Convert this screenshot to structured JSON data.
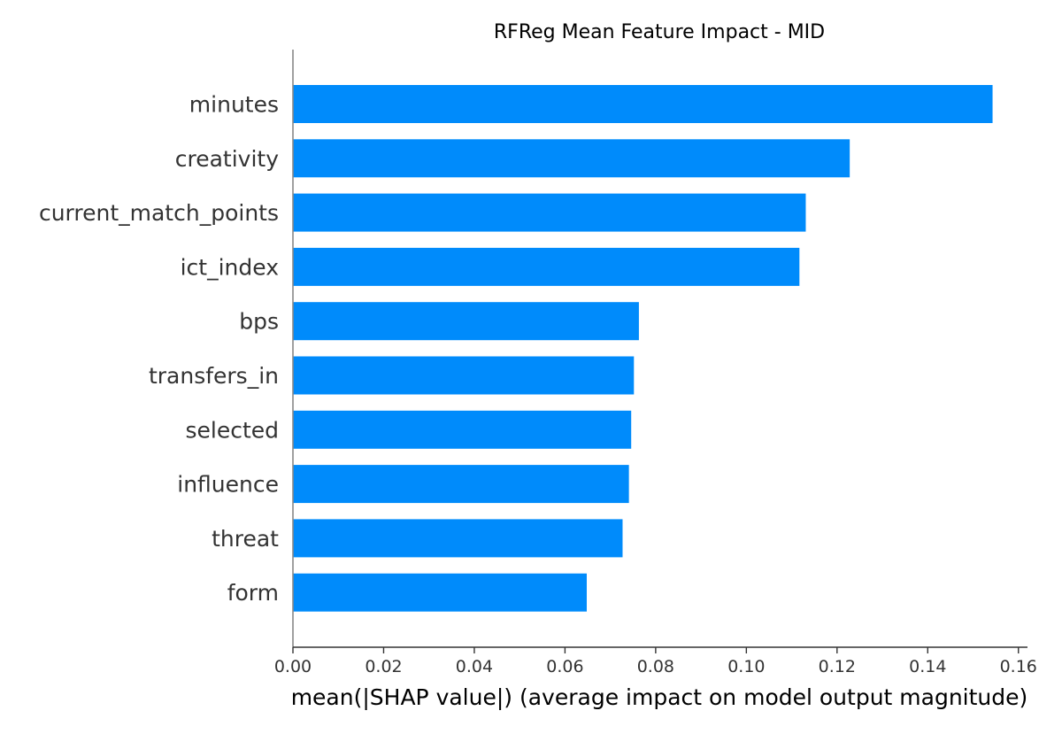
{
  "chart_data": {
    "type": "bar",
    "orientation": "horizontal",
    "title": "RFReg Mean Feature Impact - MID",
    "xlabel": "mean(|SHAP value|) (average impact on model output magnitude)",
    "ylabel": "",
    "categories": [
      "minutes",
      "creativity",
      "current_match_points",
      "ict_index",
      "bps",
      "transfers_in",
      "selected",
      "influence",
      "threat",
      "form"
    ],
    "values": [
      0.1543,
      0.1228,
      0.1131,
      0.1117,
      0.0763,
      0.0752,
      0.0746,
      0.0741,
      0.0727,
      0.0648
    ],
    "xlim": [
      0,
      0.162
    ],
    "xticks": [
      0.0,
      0.02,
      0.04,
      0.06,
      0.08,
      0.1,
      0.12,
      0.14,
      0.16
    ],
    "xtick_labels": [
      "0.00",
      "0.02",
      "0.04",
      "0.06",
      "0.08",
      "0.10",
      "0.12",
      "0.14",
      "0.16"
    ],
    "grid": false,
    "colors": {
      "bar": "#008bfb",
      "axis": "#333333",
      "text": "#333333"
    }
  }
}
